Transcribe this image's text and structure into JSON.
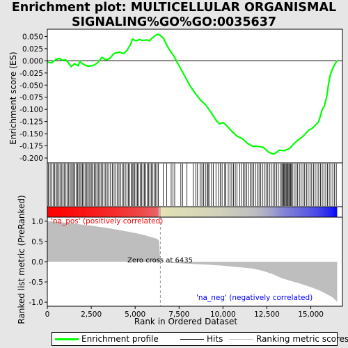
{
  "chart_data": {
    "type": "line",
    "title": "Enrichment plot: MULTICELLULAR ORGANISMAL SIGNALING%GO%GO:0035637",
    "title_lines": [
      "Enrichment plot: MULTICELLULAR ORGANISMAL",
      "SIGNALING%GO%GO:0035637"
    ],
    "xlabel": "Rank in Ordered Dataset",
    "xlim": [
      0,
      16800
    ],
    "x_ticks": [
      0,
      2500,
      5000,
      7500,
      10000,
      12500,
      15000
    ],
    "x_tick_labels": [
      "0",
      "2,500",
      "5,000",
      "7,500",
      "10,000",
      "12,500",
      "15,000"
    ],
    "es_panel": {
      "ylabel": "Enrichment score (ES)",
      "ylim": [
        -0.21,
        0.065
      ],
      "y_ticks": [
        0.05,
        0.025,
        0.0,
        -0.025,
        -0.05,
        -0.075,
        -0.1,
        -0.125,
        -0.15,
        -0.175,
        -0.2
      ],
      "y_tick_labels": [
        "0.050",
        "0.025",
        "0.000",
        "-0.025",
        "-0.050",
        "-0.075",
        "-0.100",
        "-0.125",
        "-0.150",
        "-0.175",
        "-0.200"
      ],
      "series": [
        {
          "name": "Enrichment profile",
          "color": "#00ff00",
          "points": [
            [
              0,
              -0.003
            ],
            [
              250,
              -0.004
            ],
            [
              500,
              0.003
            ],
            [
              700,
              0.005
            ],
            [
              850,
              0.001
            ],
            [
              1050,
              0.002
            ],
            [
              1200,
              -0.004
            ],
            [
              1350,
              -0.012
            ],
            [
              1550,
              -0.006
            ],
            [
              1750,
              -0.01
            ],
            [
              1850,
              -0.001
            ],
            [
              2050,
              -0.007
            ],
            [
              2300,
              -0.011
            ],
            [
              2550,
              -0.01
            ],
            [
              2700,
              -0.008
            ],
            [
              2900,
              -0.003
            ],
            [
              3100,
              0.007
            ],
            [
              3350,
              0.002
            ],
            [
              3550,
              0.005
            ],
            [
              3800,
              0.015
            ],
            [
              4100,
              0.018
            ],
            [
              4350,
              0.015
            ],
            [
              4550,
              0.022
            ],
            [
              4750,
              0.035
            ],
            [
              4850,
              0.045
            ],
            [
              5050,
              0.041
            ],
            [
              5250,
              0.044
            ],
            [
              5400,
              0.042
            ],
            [
              5700,
              0.043
            ],
            [
              5800,
              0.041
            ],
            [
              6000,
              0.048
            ],
            [
              6200,
              0.053
            ],
            [
              6300,
              0.055
            ],
            [
              6400,
              0.053
            ],
            [
              6600,
              0.047
            ],
            [
              6800,
              0.032
            ],
            [
              7000,
              0.02
            ],
            [
              7200,
              0.01
            ],
            [
              7500,
              -0.01
            ],
            [
              7800,
              -0.03
            ],
            [
              8100,
              -0.05
            ],
            [
              8400,
              -0.066
            ],
            [
              8700,
              -0.08
            ],
            [
              9000,
              -0.09
            ],
            [
              9300,
              -0.105
            ],
            [
              9600,
              -0.122
            ],
            [
              9800,
              -0.13
            ],
            [
              10000,
              -0.127
            ],
            [
              10200,
              -0.133
            ],
            [
              10500,
              -0.145
            ],
            [
              10800,
              -0.155
            ],
            [
              11100,
              -0.16
            ],
            [
              11400,
              -0.17
            ],
            [
              11700,
              -0.176
            ],
            [
              12000,
              -0.176
            ],
            [
              12300,
              -0.178
            ],
            [
              12600,
              -0.188
            ],
            [
              12850,
              -0.192
            ],
            [
              13000,
              -0.19
            ],
            [
              13200,
              -0.184
            ],
            [
              13500,
              -0.185
            ],
            [
              13800,
              -0.18
            ],
            [
              14050,
              -0.17
            ],
            [
              14300,
              -0.162
            ],
            [
              14500,
              -0.157
            ],
            [
              14700,
              -0.15
            ],
            [
              14900,
              -0.142
            ],
            [
              15050,
              -0.14
            ],
            [
              15200,
              -0.135
            ],
            [
              15450,
              -0.125
            ],
            [
              15650,
              -0.1
            ],
            [
              15750,
              -0.095
            ],
            [
              15900,
              -0.075
            ],
            [
              16000,
              -0.05
            ],
            [
              16100,
              -0.03
            ],
            [
              16250,
              -0.015
            ],
            [
              16450,
              -0.002
            ],
            [
              16500,
              0.0
            ]
          ]
        }
      ]
    },
    "hits_panel": {
      "name": "Hits",
      "color": "#000000",
      "hit_ranks": [
        60,
        160,
        240,
        330,
        410,
        500,
        560,
        640,
        720,
        800,
        880,
        960,
        1030,
        1120,
        1200,
        1280,
        1350,
        1430,
        1500,
        1570,
        1650,
        1720,
        1790,
        1860,
        1930,
        2000,
        2080,
        2150,
        2230,
        2300,
        2380,
        2450,
        2530,
        2600,
        2670,
        2740,
        2820,
        2900,
        2980,
        3060,
        3140,
        3230,
        3320,
        3410,
        3500,
        3600,
        3700,
        3800,
        3900,
        3990,
        4080,
        4170,
        4260,
        4350,
        4440,
        4530,
        4620,
        4700,
        4770,
        4840,
        4910,
        4980,
        5050,
        5130,
        5210,
        5290,
        5370,
        5450,
        5530,
        5610,
        5690,
        5770,
        5850,
        5930,
        6010,
        6090,
        6170,
        6250,
        6320,
        6600,
        6800,
        7050,
        7150,
        7250,
        7600,
        7700,
        7950,
        8300,
        8450,
        8550,
        8700,
        8800,
        8900,
        9000,
        9100,
        9150,
        9200,
        9350,
        9450,
        9600,
        9750,
        9850,
        9950,
        10100,
        10150,
        10300,
        10400,
        10500,
        10600,
        10700,
        10800,
        10950,
        11050,
        11150,
        11250,
        11350,
        11450,
        11550,
        11650,
        11750,
        11850,
        11950,
        12050,
        12150,
        12250,
        12350,
        12450,
        12550,
        12650,
        12750,
        12850,
        12950,
        13050,
        13150,
        13250,
        13350,
        13400,
        13450,
        13500,
        13550,
        13600,
        13650,
        13700,
        13750,
        13800,
        13850,
        13900,
        13950,
        14050,
        14150,
        14250,
        14350,
        14450,
        14550,
        14650,
        14750,
        14850,
        14950,
        15050,
        15150,
        15250,
        15350,
        15450,
        15550,
        15650,
        15750,
        15850,
        15950,
        16050,
        16150,
        16250,
        16350,
        16450
      ]
    },
    "ranking_panel": {
      "ylabel": "Ranked list metric (PreRanked)",
      "ylim": [
        -1.1,
        1.1
      ],
      "y_ticks": [
        1.0,
        0.5,
        0.0,
        -0.5,
        -1.0
      ],
      "y_tick_labels": [
        "1.0",
        "0.5",
        "0.0",
        "-0.5",
        "-1.0"
      ],
      "series_name": "Ranking metric scores",
      "color": "#bebebe",
      "profile": [
        [
          0,
          1.0
        ],
        [
          300,
          0.99
        ],
        [
          900,
          0.97
        ],
        [
          1700,
          0.93
        ],
        [
          2500,
          0.89
        ],
        [
          3300,
          0.84
        ],
        [
          4000,
          0.79
        ],
        [
          4600,
          0.74
        ],
        [
          5100,
          0.7
        ],
        [
          5500,
          0.66
        ],
        [
          5900,
          0.61
        ],
        [
          6200,
          0.57
        ],
        [
          6350,
          0.53
        ],
        [
          6435,
          0.0
        ],
        [
          7000,
          -0.03
        ],
        [
          8000,
          -0.05
        ],
        [
          9000,
          -0.07
        ],
        [
          10000,
          -0.1
        ],
        [
          11000,
          -0.14
        ],
        [
          11700,
          -0.17
        ],
        [
          12300,
          -0.23
        ],
        [
          12800,
          -0.3
        ],
        [
          13300,
          -0.4
        ],
        [
          13800,
          -0.47
        ],
        [
          14300,
          -0.53
        ],
        [
          14800,
          -0.6
        ],
        [
          15200,
          -0.66
        ],
        [
          15600,
          -0.73
        ],
        [
          15900,
          -0.8
        ],
        [
          16200,
          -0.87
        ],
        [
          16450,
          -0.97
        ],
        [
          16500,
          -1.0
        ]
      ]
    },
    "annotations": {
      "positive": "'na_pos' (positively correlated)",
      "negative": "'na_neg' (negatively correlated)",
      "zero_cross": "Zero cross at 6435",
      "zero_cross_rank": 6435
    },
    "legend": [
      "Enrichment profile",
      "Hits",
      "Ranking metric scores"
    ],
    "legend_position": "bottom",
    "grid": false
  }
}
